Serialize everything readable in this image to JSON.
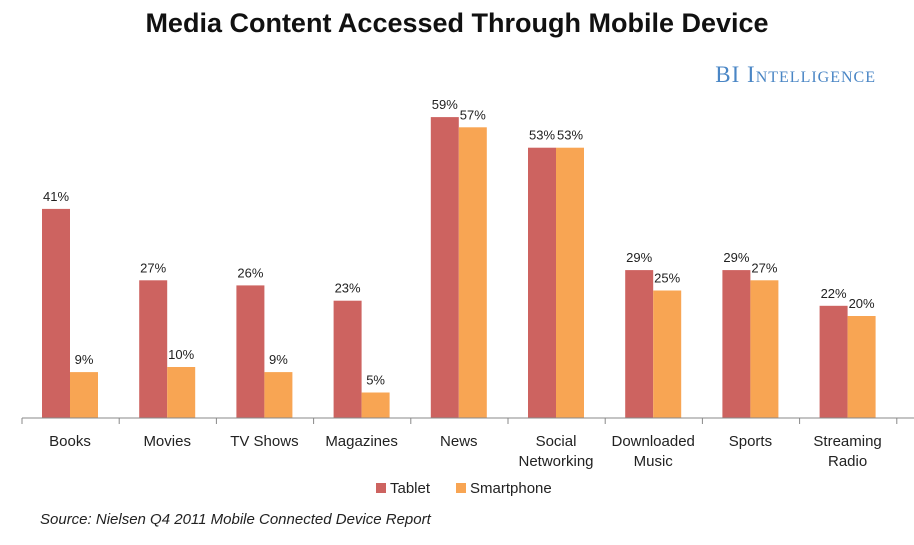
{
  "title": "Media Content Accessed Through Mobile Device",
  "brand": "BI Intelligence",
  "source": "Source: Nielsen Q4 2011 Mobile Connected Device Report",
  "chart_data": {
    "type": "bar",
    "categories": [
      "Books",
      "Movies",
      "TV Shows",
      "Magazines",
      "News",
      "Social Networking",
      "Downloaded Music",
      "Sports",
      "Streaming Radio"
    ],
    "category_lines": [
      [
        "Books"
      ],
      [
        "Movies"
      ],
      [
        "TV Shows"
      ],
      [
        "Magazines"
      ],
      [
        "News"
      ],
      [
        "Social",
        "Networking"
      ],
      [
        "Downloaded",
        "Music"
      ],
      [
        "Sports"
      ],
      [
        "Streaming",
        "Radio"
      ]
    ],
    "series": [
      {
        "name": "Tablet",
        "color": "#cd6360",
        "values": [
          41,
          27,
          26,
          23,
          59,
          53,
          29,
          29,
          22
        ]
      },
      {
        "name": "Smartphone",
        "color": "#f8a553",
        "values": [
          9,
          10,
          9,
          5,
          57,
          53,
          25,
          27,
          20
        ]
      }
    ],
    "value_suffix": "%",
    "ylim": [
      0,
      60
    ],
    "grid": false,
    "legend": "bottom-center",
    "xlabel": "",
    "ylabel": ""
  }
}
